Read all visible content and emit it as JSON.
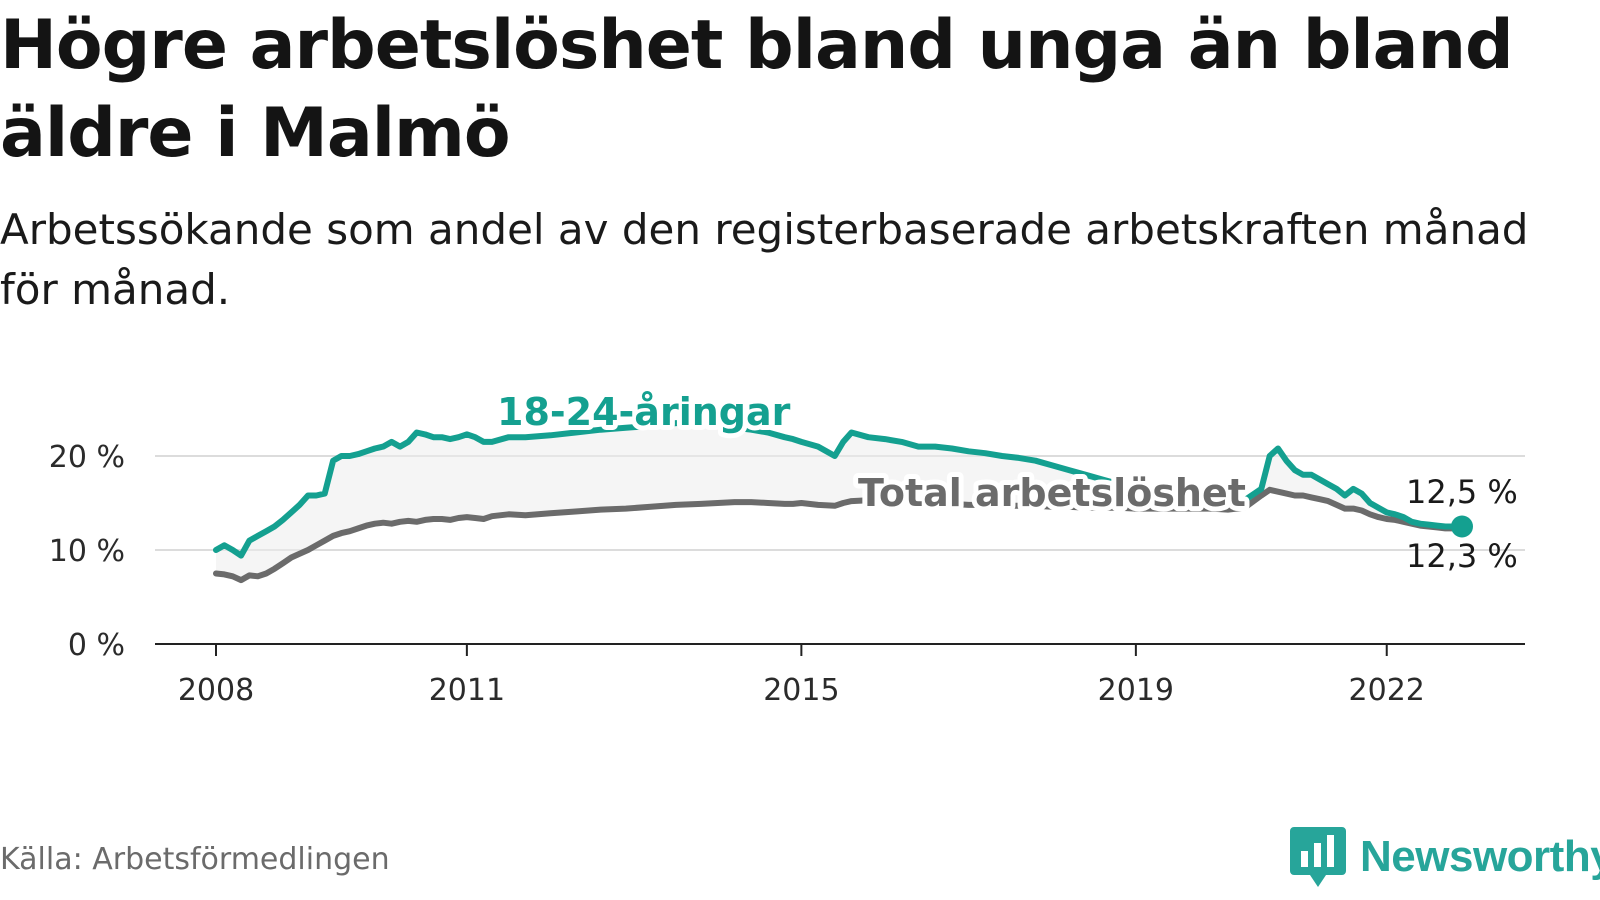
{
  "title": "Högre arbetslöshet bland unga än bland äldre i Malmö",
  "subtitle": "Arbetssökande som andel av den registerbaserade arbetskraften månad för månad.",
  "source": "Källa: Arbetsförmedlingen",
  "brand": {
    "name": "Newsworthy",
    "icon": "newsworthy-logo-icon",
    "color": "#27a59a"
  },
  "chart_data": {
    "type": "line",
    "title": "Högre arbetslöshet bland unga än bland äldre i Malmö",
    "xlabel": "",
    "ylabel": "",
    "ylim": [
      0,
      22
    ],
    "xlim": [
      2008,
      2022.9
    ],
    "y_ticks": [
      {
        "value": 0,
        "label": "0 %"
      },
      {
        "value": 10,
        "label": "10 %"
      },
      {
        "value": 20,
        "label": "20 %"
      }
    ],
    "x_ticks": [
      {
        "value": 2008,
        "label": "2008"
      },
      {
        "value": 2011,
        "label": "2011"
      },
      {
        "value": 2015,
        "label": "2015"
      },
      {
        "value": 2019,
        "label": "2019"
      },
      {
        "value": 2022,
        "label": "2022"
      }
    ],
    "grid": true,
    "series": [
      {
        "name": "18-24-åringar",
        "label": "18-24-åringar",
        "color": "#14a090",
        "end_value": 12.5,
        "end_label": "12,5 %",
        "x": [
          2008.0,
          2008.1,
          2008.2,
          2008.3,
          2008.4,
          2008.5,
          2008.6,
          2008.7,
          2008.8,
          2008.9,
          2009.0,
          2009.1,
          2009.2,
          2009.3,
          2009.4,
          2009.5,
          2009.6,
          2009.7,
          2009.8,
          2009.9,
          2010.0,
          2010.1,
          2010.2,
          2010.3,
          2010.4,
          2010.5,
          2010.6,
          2010.7,
          2010.8,
          2010.9,
          2011.0,
          2011.1,
          2011.2,
          2011.3,
          2011.5,
          2011.7,
          2012.0,
          2012.3,
          2012.6,
          2012.9,
          2013.2,
          2013.5,
          2013.8,
          2014.0,
          2014.2,
          2014.4,
          2014.6,
          2014.8,
          2014.9,
          2015.0,
          2015.2,
          2015.4,
          2015.5,
          2015.6,
          2015.8,
          2016.0,
          2016.2,
          2016.4,
          2016.6,
          2016.8,
          2017.0,
          2017.2,
          2017.4,
          2017.6,
          2017.8,
          2018.0,
          2018.2,
          2018.4,
          2018.6,
          2018.8,
          2019.0,
          2019.3,
          2019.6,
          2019.9,
          2020.1,
          2020.3,
          2020.5,
          2020.6,
          2020.7,
          2020.8,
          2020.9,
          2021.0,
          2021.1,
          2021.2,
          2021.3,
          2021.4,
          2021.5,
          2021.6,
          2021.7,
          2021.8,
          2021.9,
          2022.0,
          2022.1,
          2022.2,
          2022.3,
          2022.4,
          2022.5,
          2022.6,
          2022.7,
          2022.8,
          2022.9
        ],
        "values": [
          10.0,
          10.5,
          10.0,
          9.4,
          11.0,
          11.5,
          12.0,
          12.5,
          13.2,
          14.0,
          14.8,
          15.8,
          15.8,
          16.0,
          19.5,
          20.0,
          20.0,
          20.2,
          20.5,
          20.8,
          21.0,
          21.5,
          21.0,
          21.5,
          22.5,
          22.3,
          22.0,
          22.0,
          21.8,
          22.0,
          22.3,
          22.0,
          21.5,
          21.5,
          22.0,
          22.0,
          22.2,
          22.5,
          22.8,
          23.0,
          23.2,
          23.5,
          23.5,
          23.3,
          23.0,
          22.8,
          22.5,
          22.0,
          21.8,
          21.5,
          21.0,
          20.0,
          21.5,
          22.5,
          22.0,
          21.8,
          21.5,
          21.0,
          21.0,
          20.8,
          20.5,
          20.3,
          20.0,
          19.8,
          19.5,
          19.0,
          18.5,
          18.0,
          17.5,
          17.0,
          16.5,
          16.0,
          15.8,
          15.5,
          15.0,
          15.3,
          16.5,
          20.0,
          20.8,
          19.5,
          18.5,
          18.0,
          18.0,
          17.5,
          17.0,
          16.5,
          15.8,
          16.5,
          16.0,
          15.0,
          14.5,
          14.0,
          13.8,
          13.5,
          13.0,
          12.8,
          12.7,
          12.6,
          12.5,
          12.5,
          12.5
        ]
      },
      {
        "name": "Total arbetslöshet",
        "label": "Total arbetslöshet",
        "color": "#6b6b6b",
        "end_value": 12.3,
        "end_label": "12,3 %",
        "x": [
          2008.0,
          2008.1,
          2008.2,
          2008.3,
          2008.4,
          2008.5,
          2008.6,
          2008.7,
          2008.8,
          2008.9,
          2009.0,
          2009.1,
          2009.2,
          2009.3,
          2009.4,
          2009.5,
          2009.6,
          2009.7,
          2009.8,
          2009.9,
          2010.0,
          2010.1,
          2010.2,
          2010.3,
          2010.4,
          2010.5,
          2010.6,
          2010.7,
          2010.8,
          2010.9,
          2011.0,
          2011.1,
          2011.2,
          2011.3,
          2011.5,
          2011.7,
          2012.0,
          2012.3,
          2012.6,
          2012.9,
          2013.2,
          2013.5,
          2013.8,
          2014.0,
          2014.2,
          2014.4,
          2014.6,
          2014.8,
          2014.9,
          2015.0,
          2015.2,
          2015.4,
          2015.5,
          2015.6,
          2015.8,
          2016.0,
          2016.2,
          2016.4,
          2016.6,
          2016.8,
          2017.0,
          2017.2,
          2017.4,
          2017.6,
          2017.8,
          2018.0,
          2018.2,
          2018.4,
          2018.6,
          2018.8,
          2019.0,
          2019.3,
          2019.6,
          2019.9,
          2020.1,
          2020.3,
          2020.5,
          2020.6,
          2020.7,
          2020.8,
          2020.9,
          2021.0,
          2021.1,
          2021.2,
          2021.3,
          2021.4,
          2021.5,
          2021.6,
          2021.7,
          2021.8,
          2021.9,
          2022.0,
          2022.1,
          2022.2,
          2022.3,
          2022.4,
          2022.5,
          2022.6,
          2022.7,
          2022.8,
          2022.9
        ],
        "values": [
          7.5,
          7.4,
          7.2,
          6.8,
          7.3,
          7.2,
          7.5,
          8.0,
          8.6,
          9.2,
          9.6,
          10.0,
          10.5,
          11.0,
          11.5,
          11.8,
          12.0,
          12.3,
          12.6,
          12.8,
          12.9,
          12.8,
          13.0,
          13.1,
          13.0,
          13.2,
          13.3,
          13.3,
          13.2,
          13.4,
          13.5,
          13.4,
          13.3,
          13.6,
          13.8,
          13.7,
          13.9,
          14.1,
          14.3,
          14.4,
          14.6,
          14.8,
          14.9,
          15.0,
          15.1,
          15.1,
          15.0,
          14.9,
          14.9,
          15.0,
          14.8,
          14.7,
          15.0,
          15.2,
          15.3,
          15.2,
          15.1,
          15.0,
          14.9,
          14.9,
          14.8,
          14.8,
          14.7,
          14.7,
          14.7,
          14.6,
          14.6,
          14.5,
          14.5,
          14.5,
          14.4,
          14.4,
          14.4,
          14.4,
          14.3,
          14.5,
          15.8,
          16.4,
          16.2,
          16.0,
          15.8,
          15.8,
          15.6,
          15.4,
          15.2,
          14.8,
          14.4,
          14.4,
          14.2,
          13.8,
          13.5,
          13.3,
          13.2,
          13.0,
          12.8,
          12.6,
          12.5,
          12.4,
          12.3,
          12.3,
          12.3
        ]
      }
    ]
  }
}
